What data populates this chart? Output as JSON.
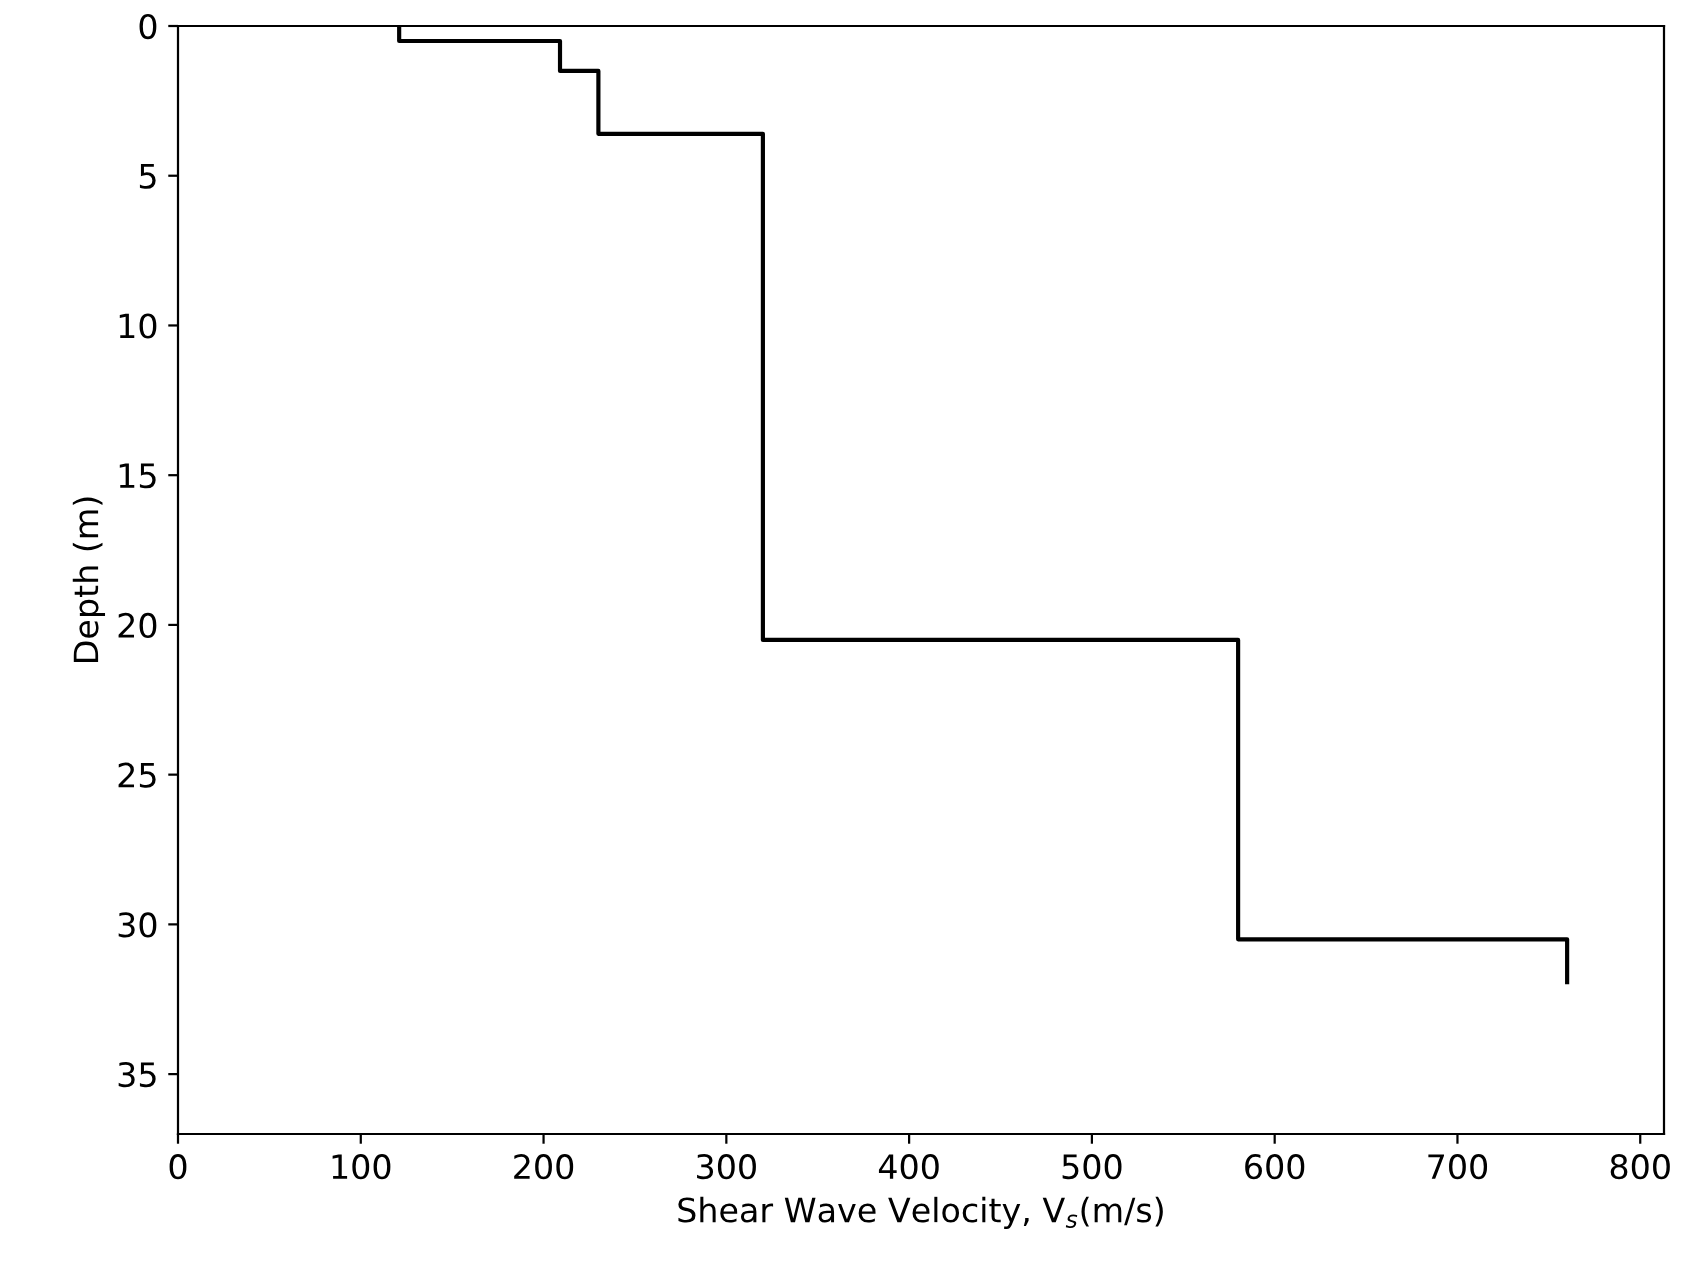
{
  "chart_data": {
    "type": "line",
    "xlabel": "Shear Wave Velocity, V$_{s}$(m/s)",
    "ylabel": "Depth (m)",
    "x": [
      121,
      121,
      209,
      209,
      230,
      230,
      320,
      320,
      580,
      580,
      760,
      760
    ],
    "series": [
      {
        "color": "#000000",
        "values": [
          0,
          0.5,
          0.5,
          1.5,
          1.5,
          3.6,
          3.6,
          20.5,
          20.5,
          30.5,
          30.5,
          32
        ]
      }
    ],
    "xlim": [
      0,
      813
    ],
    "xticks": [
      0,
      100,
      200,
      300,
      400,
      500,
      600,
      700,
      800
    ],
    "ylim": [
      37,
      0
    ],
    "yticks": [
      0,
      5,
      10,
      15,
      20,
      25,
      30,
      35
    ],
    "grid": false,
    "legend": false
  }
}
